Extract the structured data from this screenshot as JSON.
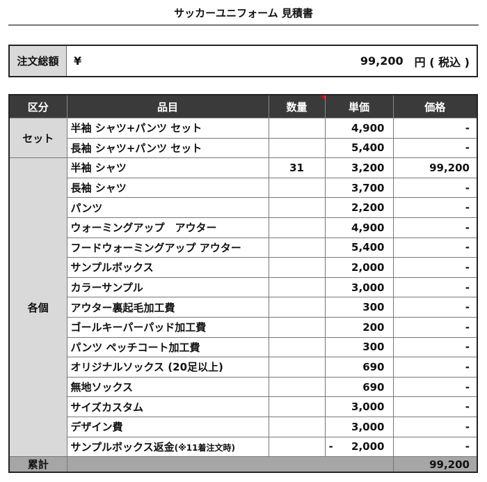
{
  "title": "サッカーユニフォーム 見積書",
  "order_total": {
    "label": "注文総額",
    "currency": "¥",
    "amount": "99,200",
    "suffix": "円 ( 税込 )"
  },
  "headers": [
    "区分",
    "品目",
    "数量",
    "単価",
    "価格"
  ],
  "categories": {
    "set": "セット",
    "individual": "各個"
  },
  "rows": [
    {
      "item": "半袖 シャツ+パンツ セット",
      "qty": "",
      "unit": "4,900",
      "price": "-"
    },
    {
      "item": "長袖 シャツ+パンツ セット",
      "qty": "",
      "unit": "5,400",
      "price": "-"
    },
    {
      "item": "半袖 シャツ",
      "qty": "31",
      "unit": "3,200",
      "price": "99,200"
    },
    {
      "item": "長袖 シャツ",
      "qty": "",
      "unit": "3,700",
      "price": "-"
    },
    {
      "item": "パンツ",
      "qty": "",
      "unit": "2,200",
      "price": "-"
    },
    {
      "item": "ウォーミングアップ　アウター",
      "qty": "",
      "unit": "4,900",
      "price": "-"
    },
    {
      "item": "フードウォーミングアップ アウター",
      "qty": "",
      "unit": "5,400",
      "price": "-"
    },
    {
      "item": "サンプルボックス",
      "qty": "",
      "unit": "2,000",
      "price": "-"
    },
    {
      "item": "カラーサンプル",
      "qty": "",
      "unit": "3,000",
      "price": "-"
    },
    {
      "item": "アウター裏起毛加工費",
      "qty": "",
      "unit": "300",
      "price": "-"
    },
    {
      "item": "ゴールキーパーパッド加工費",
      "qty": "",
      "unit": "200",
      "price": "-"
    },
    {
      "item": "パンツ ペッチコート加工費",
      "qty": "",
      "unit": "300",
      "price": "-"
    },
    {
      "item": "オリジナルソックス (20足以上)",
      "qty": "",
      "unit": "690",
      "price": "-"
    },
    {
      "item": "無地ソックス",
      "qty": "",
      "unit": "690",
      "price": "-"
    },
    {
      "item": "サイズカスタム",
      "qty": "",
      "unit": "3,000",
      "price": "-"
    },
    {
      "item": "デザイン費",
      "qty": "",
      "unit": "3,000",
      "price": "-"
    },
    {
      "item": "サンプルボックス返金",
      "note": "(※11着注文時)",
      "qty": "",
      "unit_sign": "-",
      "unit": "2,000",
      "price": "-"
    }
  ],
  "sum": {
    "label": "累計",
    "price": "99,200"
  }
}
